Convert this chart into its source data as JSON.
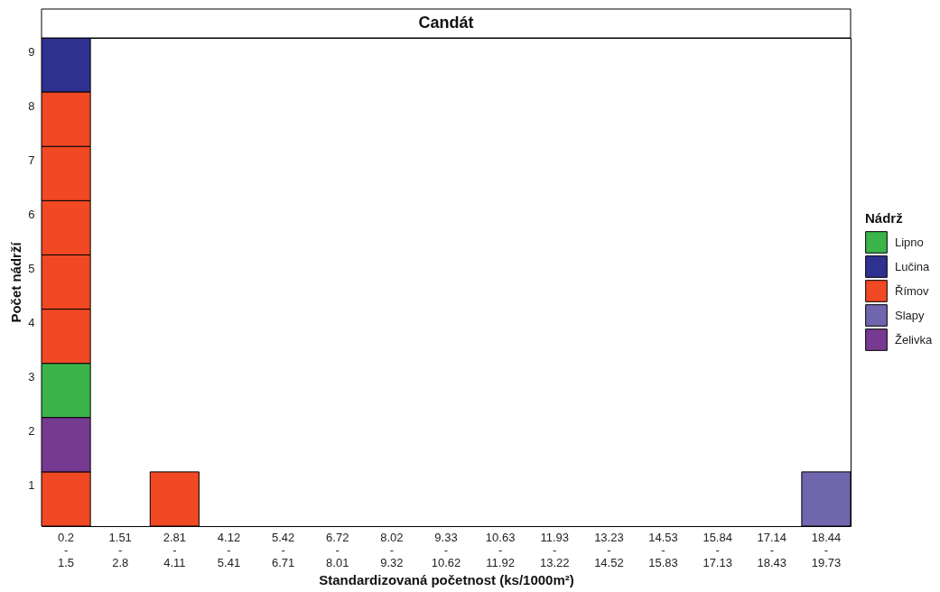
{
  "chart_data": {
    "type": "bar",
    "title": "Candát",
    "xlabel": "Standardizovaná početnost (ks/1000m²)",
    "ylabel": "Počet nádrží",
    "legend_title": "Nádrž",
    "legend": "right",
    "categories": [
      "0.2\n-\n1.5",
      "1.51\n-\n2.8",
      "2.81\n-\n4.11",
      "4.12\n-\n5.41",
      "5.42\n-\n6.71",
      "6.72\n-\n8.01",
      "8.02\n-\n9.32",
      "9.33\n-\n10.62",
      "10.63\n-\n11.92",
      "11.93\n-\n13.22",
      "13.23\n-\n14.52",
      "14.53\n-\n15.83",
      "15.84\n-\n17.13",
      "17.14\n-\n18.43",
      "18.44\n-\n19.73"
    ],
    "series": [
      {
        "name": "Lipno",
        "color": "#3bb44a",
        "values": [
          1,
          null,
          null,
          null,
          null,
          null,
          null,
          null,
          null,
          null,
          null,
          null,
          null,
          null,
          null
        ],
        "base": [
          2,
          null,
          null,
          null,
          null,
          null,
          null,
          null,
          null,
          null,
          null,
          null,
          null,
          null,
          null
        ]
      },
      {
        "name": "Lučina",
        "color": "#2f3190",
        "values": [
          1,
          null,
          null,
          null,
          null,
          null,
          null,
          null,
          null,
          null,
          null,
          null,
          null,
          null,
          null
        ],
        "base": [
          8,
          null,
          null,
          null,
          null,
          null,
          null,
          null,
          null,
          null,
          null,
          null,
          null,
          null,
          null
        ]
      },
      {
        "name": "Římov",
        "color": "#f04923",
        "values": [
          1,
          null,
          1,
          null,
          null,
          null,
          null,
          null,
          null,
          null,
          null,
          null,
          null,
          null,
          null
        ],
        "base": [
          0,
          null,
          0,
          null,
          null,
          null,
          null,
          null,
          null,
          null,
          null,
          null,
          null,
          null,
          null
        ]
      },
      {
        "name": "Slapy",
        "color": "#6f66ad",
        "values": [
          null,
          null,
          null,
          null,
          null,
          null,
          null,
          null,
          null,
          null,
          null,
          null,
          null,
          null,
          1
        ],
        "base": [
          null,
          null,
          null,
          null,
          null,
          null,
          null,
          null,
          null,
          null,
          null,
          null,
          null,
          null,
          0
        ]
      },
      {
        "name": "Želivka",
        "color": "#773a91",
        "values": [
          1,
          null,
          null,
          null,
          null,
          null,
          null,
          null,
          null,
          null,
          null,
          null,
          null,
          null,
          null
        ],
        "base": [
          1,
          null,
          null,
          null,
          null,
          null,
          null,
          null,
          null,
          null,
          null,
          null,
          null,
          null,
          null
        ]
      },
      {
        "color": "#f04923",
        "values": [
          1,
          null,
          null,
          null,
          null,
          null,
          null,
          null,
          null,
          null,
          null,
          null,
          null,
          null,
          null
        ],
        "base": [
          3,
          null,
          null,
          null,
          null,
          null,
          null,
          null,
          null,
          null,
          null,
          null,
          null,
          null,
          null
        ]
      },
      {
        "color": "#f04923",
        "values": [
          1,
          null,
          null,
          null,
          null,
          null,
          null,
          null,
          null,
          null,
          null,
          null,
          null,
          null,
          null
        ],
        "base": [
          4,
          null,
          null,
          null,
          null,
          null,
          null,
          null,
          null,
          null,
          null,
          null,
          null,
          null,
          null
        ]
      },
      {
        "color": "#f04923",
        "values": [
          1,
          null,
          null,
          null,
          null,
          null,
          null,
          null,
          null,
          null,
          null,
          null,
          null,
          null,
          null
        ],
        "base": [
          5,
          null,
          null,
          null,
          null,
          null,
          null,
          null,
          null,
          null,
          null,
          null,
          null,
          null,
          null
        ]
      },
      {
        "color": "#f04923",
        "values": [
          1,
          null,
          null,
          null,
          null,
          null,
          null,
          null,
          null,
          null,
          null,
          null,
          null,
          null,
          null
        ],
        "base": [
          6,
          null,
          null,
          null,
          null,
          null,
          null,
          null,
          null,
          null,
          null,
          null,
          null,
          null,
          null
        ]
      },
      {
        "color": "#f04923",
        "values": [
          1,
          null,
          null,
          null,
          null,
          null,
          null,
          null,
          null,
          null,
          null,
          null,
          null,
          null,
          null
        ],
        "base": [
          7,
          null,
          null,
          null,
          null,
          null,
          null,
          null,
          null,
          null,
          null,
          null,
          null,
          null,
          null
        ]
      }
    ],
    "ylim": [
      0,
      9
    ],
    "yticks": [
      {
        "value": 0.75,
        "label": "1"
      },
      {
        "value": 1.75,
        "label": "2"
      },
      {
        "value": 2.75,
        "label": "3"
      },
      {
        "value": 3.75,
        "label": "4"
      },
      {
        "value": 4.75,
        "label": "5"
      },
      {
        "value": 5.75,
        "label": "6"
      },
      {
        "value": 6.75,
        "label": "7"
      },
      {
        "value": 7.75,
        "label": "8"
      },
      {
        "value": 8.75,
        "label": "9"
      }
    ]
  }
}
